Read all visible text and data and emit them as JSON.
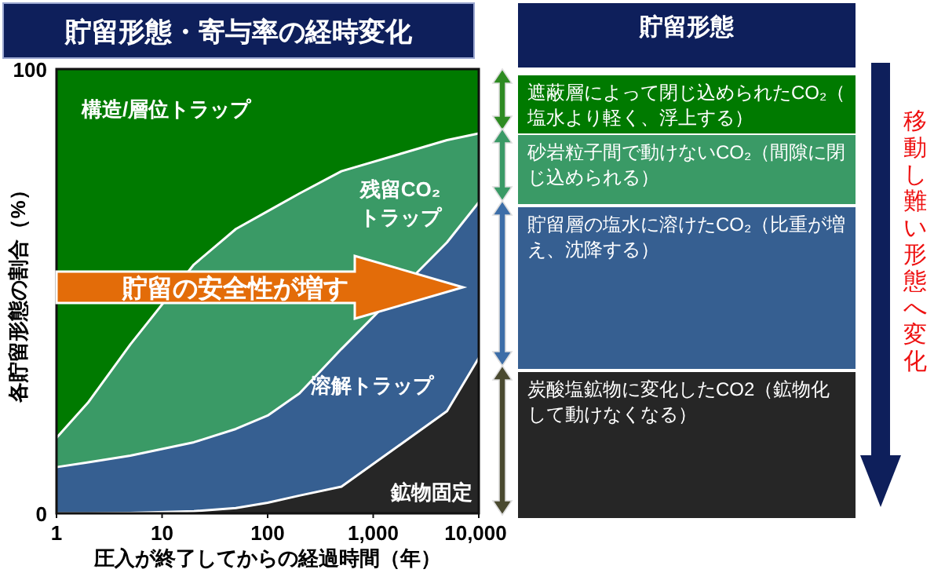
{
  "chart_data": [
    {
      "type": "area",
      "stacked": true,
      "title": "貯留形態・寄与率の経時変化",
      "xlabel": "圧入が終了してからの経過時間（年）",
      "ylabel": "各貯留形態の割合（%）",
      "log": "x",
      "x": [
        1,
        2,
        5,
        20,
        50,
        100,
        200,
        500,
        5000,
        10000
      ],
      "xlim": [
        1,
        10000
      ],
      "ylim": [
        0,
        100
      ],
      "xticks": [
        1,
        10,
        100,
        {
          "value": 1000,
          "label": "1,000"
        },
        {
          "value": 10000,
          "label": "10,000"
        }
      ],
      "yticks": [
        0,
        100
      ],
      "series": [
        {
          "name": "鉱物固定",
          "color": "#262626",
          "values": [
            0,
            0,
            0.1,
            0.5,
            1.2,
            2.4,
            4,
            6,
            23,
            35
          ]
        },
        {
          "name": "溶解トラップ",
          "color": "#365f91",
          "values": [
            10.4,
            11.5,
            12.9,
            15.5,
            17.8,
            19.6,
            23,
            31,
            38,
            35
          ]
        },
        {
          "name": "残留CO₂トラップ",
          "color": "#3a9a66",
          "values": [
            6.6,
            13.5,
            25,
            40,
            45,
            46,
            45,
            40,
            23,
            15.5
          ]
        },
        {
          "name": "構造/層位トラップ",
          "color": "#007a00",
          "values": [
            83,
            75,
            62,
            44,
            36,
            32,
            28,
            23,
            16,
            14.5
          ]
        }
      ],
      "annotations": [
        "貯留の安全性が増す"
      ]
    },
    {
      "type": "other",
      "title": "貯留形態",
      "annotations": [
        "遮蔽層によって閉じ込められたCO₂（塩水より軽く、浮上する）",
        "砂岩粒子間で動けないCO₂（間隙に閉じ込められる）",
        "貯留層の塩水に溶けたCO₂（比重が増え、沈降する）",
        "炭酸塩鉱物に変化したCO2（鉱物化して動けなくなる）",
        "移動し難い形態へ変化"
      ]
    }
  ]
}
